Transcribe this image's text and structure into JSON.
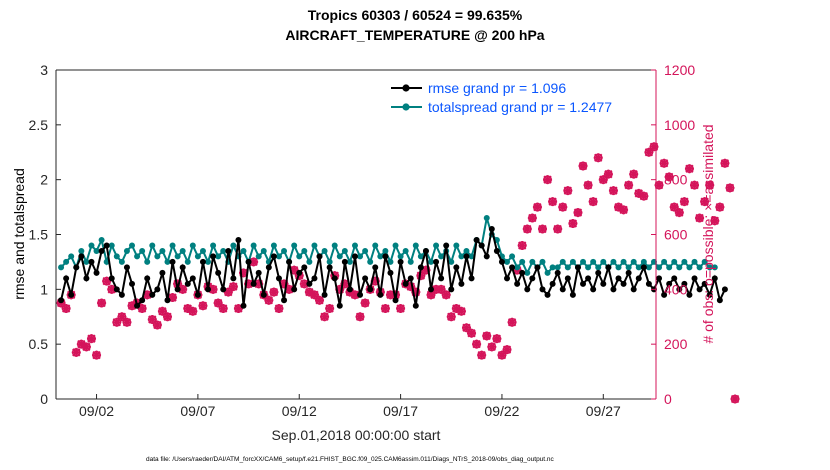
{
  "chart_data": {
    "type": "line",
    "title_line1": "Tropics 60303 / 60524 = 99.635%",
    "title_line2": "AIRCRAFT_TEMPERATURE @ 200 hPa",
    "xlabel": "Sep.01,2018 00:00:00 start",
    "ylabel": "rmse and totalspread",
    "ylabel_right": "# of obs: o=possible; ×=assimilated",
    "footnote": "data file: /Users/raeder/DAI/ATM_forcXX/CAM6_setup/f.e21.FHIST_BGC.f09_025.CAM6assim.011/Diags_NTrS_2018-09/obs_diag_output.nc",
    "x_ticks": [
      {
        "day": 2,
        "label": "09/02"
      },
      {
        "day": 7,
        "label": "09/07"
      },
      {
        "day": 12,
        "label": "09/12"
      },
      {
        "day": 17,
        "label": "09/17"
      },
      {
        "day": 22,
        "label": "09/22"
      },
      {
        "day": 27,
        "label": "09/27"
      }
    ],
    "xlim_days": [
      0,
      29.6
    ],
    "ylim": [
      0,
      3
    ],
    "y_ticks": [
      "0",
      "0.5",
      "1",
      "1.5",
      "2",
      "2.5",
      "3"
    ],
    "y_tick_values": [
      0,
      0.5,
      1,
      1.5,
      2,
      2.5,
      3
    ],
    "ylim_right": [
      0,
      1200
    ],
    "y_ticks_right": [
      "0",
      "200",
      "400",
      "600",
      "800",
      "1000",
      "1200"
    ],
    "y_tick_values_right": [
      0,
      200,
      400,
      600,
      800,
      1000,
      1200
    ],
    "grid": false,
    "legend_position": "top-right",
    "x_start_day": 0.25,
    "x_step_days": 0.25,
    "series": [
      {
        "name": "rmse grand pr = 1.096",
        "axis": "left",
        "color": "#000000",
        "marker": "circle",
        "values": [
          0.9,
          1.1,
          0.95,
          1.2,
          1.3,
          1.1,
          1.25,
          1.15,
          1.35,
          1.4,
          1.1,
          1.0,
          0.95,
          1.2,
          1.05,
          0.85,
          0.9,
          1.1,
          0.95,
          1.0,
          1.15,
          0.9,
          1.25,
          1.0,
          1.2,
          1.05,
          1.1,
          0.95,
          1.25,
          1.0,
          1.3,
          1.15,
          1.0,
          1.35,
          1.1,
          1.45,
          0.85,
          1.25,
          1.05,
          1.15,
          0.95,
          1.2,
          1.3,
          1.1,
          0.9,
          1.25,
          1.0,
          1.15,
          1.2,
          1.05,
          1.1,
          1.3,
          0.95,
          1.2,
          1.1,
          0.85,
          1.25,
          1.0,
          1.3,
          0.95,
          1.1,
          1.0,
          1.2,
          0.95,
          1.3,
          1.15,
          0.9,
          1.25,
          1.05,
          1.1,
          0.85,
          1.2,
          1.35,
          1.0,
          1.25,
          1.1,
          1.4,
          1.0,
          1.2,
          1.05,
          1.3,
          1.1,
          1.45,
          1.4,
          1.3,
          1.55,
          1.35,
          1.25,
          1.1,
          1.2,
          1.05,
          1.15,
          1.0,
          1.1,
          1.2,
          1.0,
          0.95,
          1.05,
          1.15,
          1.0,
          1.1,
          0.95,
          1.2,
          1.05,
          1.1,
          1.0,
          1.15,
          1.05,
          1.2,
          1.0,
          1.1,
          1.05,
          1.15,
          1.0,
          1.1,
          1.2,
          1.05,
          1.0,
          1.1,
          0.95,
          1.05,
          1.1,
          1.0,
          1.05,
          0.95,
          1.1,
          1.0,
          1.05,
          0.95,
          1.1,
          0.9,
          1.0
        ]
      },
      {
        "name": "totalspread grand pr = 1.2477",
        "axis": "left",
        "color": "#008080",
        "marker": "circle",
        "values": [
          1.2,
          1.25,
          1.3,
          1.2,
          1.35,
          1.25,
          1.4,
          1.35,
          1.45,
          1.25,
          1.4,
          1.3,
          1.25,
          1.35,
          1.4,
          1.3,
          1.35,
          1.25,
          1.4,
          1.3,
          1.35,
          1.25,
          1.4,
          1.3,
          1.35,
          1.25,
          1.4,
          1.3,
          1.35,
          1.25,
          1.4,
          1.3,
          1.35,
          1.25,
          1.4,
          1.3,
          1.35,
          1.25,
          1.4,
          1.3,
          1.35,
          1.25,
          1.4,
          1.3,
          1.35,
          1.25,
          1.4,
          1.3,
          1.35,
          1.25,
          1.4,
          1.3,
          1.35,
          1.25,
          1.4,
          1.3,
          1.35,
          1.25,
          1.4,
          1.3,
          1.35,
          1.25,
          1.4,
          1.3,
          1.35,
          1.25,
          1.4,
          1.3,
          1.35,
          1.25,
          1.4,
          1.3,
          1.35,
          1.25,
          1.4,
          1.3,
          1.35,
          1.25,
          1.4,
          1.3,
          1.35,
          1.3,
          1.45,
          1.4,
          1.65,
          1.5,
          1.45,
          1.3,
          1.25,
          1.3,
          1.2,
          1.25,
          1.15,
          1.25,
          1.2,
          1.25,
          1.15,
          1.2,
          1.2,
          1.25,
          1.2,
          1.25,
          1.2,
          1.25,
          1.2,
          1.25,
          1.2,
          1.25,
          1.2,
          1.25,
          1.2,
          1.25,
          1.2,
          1.25,
          1.2,
          1.25,
          1.2,
          1.25,
          1.2,
          1.25,
          1.2,
          1.25,
          1.2,
          1.25,
          1.2,
          1.25,
          1.2,
          1.25,
          1.2,
          1.2
        ]
      },
      {
        "name": "# of obs possible",
        "axis": "right",
        "color": "#d4145a",
        "marker": "o",
        "values": [
          350,
          330,
          380,
          170,
          200,
          190,
          220,
          160,
          350,
          430,
          400,
          280,
          300,
          280,
          340,
          350,
          330,
          380,
          290,
          270,
          320,
          300,
          370,
          420,
          400,
          330,
          320,
          380,
          340,
          410,
          400,
          350,
          330,
          390,
          410,
          330,
          460,
          420,
          500,
          420,
          380,
          360,
          390,
          330,
          420,
          400,
          470,
          450,
          420,
          390,
          380,
          360,
          300,
          330,
          450,
          400,
          420,
          390,
          380,
          300,
          350,
          400,
          430,
          390,
          330,
          380,
          380,
          330,
          420,
          410,
          390,
          450,
          470,
          380,
          400,
          400,
          380,
          300,
          330,
          320,
          260,
          240,
          200,
          160,
          230,
          190,
          220,
          160,
          180,
          280,
          470,
          560,
          620,
          660,
          700,
          620,
          800,
          720,
          620,
          700,
          760,
          640,
          680,
          850,
          780,
          720,
          880,
          800,
          820,
          760,
          700,
          690,
          780,
          820,
          750,
          740,
          900,
          920,
          780,
          860,
          810,
          700,
          680,
          720,
          840,
          780,
          660,
          720,
          780,
          650,
          700,
          860,
          770,
          0
        ]
      },
      {
        "name": "# of obs assimilated",
        "axis": "right",
        "color": "#d4145a",
        "marker": "x",
        "values": [
          350,
          330,
          380,
          170,
          200,
          190,
          220,
          160,
          350,
          430,
          400,
          280,
          300,
          280,
          340,
          350,
          330,
          380,
          290,
          270,
          320,
          300,
          370,
          420,
          400,
          330,
          320,
          380,
          340,
          410,
          400,
          350,
          330,
          390,
          410,
          330,
          460,
          420,
          500,
          420,
          380,
          360,
          390,
          330,
          420,
          400,
          470,
          450,
          420,
          390,
          380,
          360,
          300,
          330,
          450,
          400,
          420,
          390,
          380,
          300,
          350,
          400,
          430,
          390,
          330,
          380,
          380,
          330,
          420,
          410,
          390,
          450,
          470,
          380,
          400,
          400,
          380,
          300,
          330,
          320,
          260,
          240,
          200,
          160,
          230,
          190,
          220,
          160,
          180,
          280,
          470,
          560,
          620,
          660,
          700,
          620,
          800,
          720,
          620,
          700,
          760,
          640,
          680,
          850,
          780,
          720,
          880,
          800,
          820,
          760,
          700,
          690,
          780,
          820,
          750,
          740,
          900,
          920,
          780,
          860,
          810,
          700,
          680,
          720,
          840,
          780,
          660,
          720,
          780,
          650,
          700,
          860,
          770,
          0
        ]
      }
    ],
    "legend": [
      {
        "label": "rmse grand pr = 1.096",
        "color": "#000000"
      },
      {
        "label": "totalspread grand pr = 1.2477",
        "color": "#008080"
      }
    ]
  }
}
